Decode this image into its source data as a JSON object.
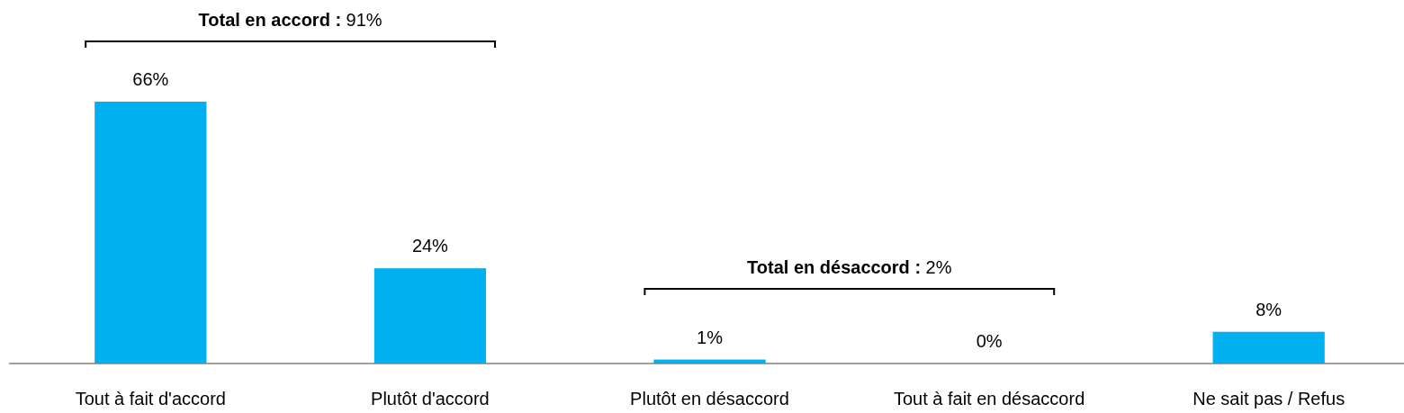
{
  "chart_data": {
    "type": "bar",
    "categories": [
      "Tout à fait d'accord",
      "Plutôt d'accord",
      "Plutôt en désaccord",
      "Tout à fait en désaccord",
      "Ne sait pas / Refus"
    ],
    "values": [
      66,
      24,
      1,
      0,
      8
    ],
    "color": "#00b0f0",
    "data_labels": true,
    "value_labels": [
      "66%",
      "24%",
      "1%",
      "0%",
      "8%"
    ],
    "annotations": [
      "Total en accord : 91%",
      "Total en désaccord : 2%"
    ]
  }
}
